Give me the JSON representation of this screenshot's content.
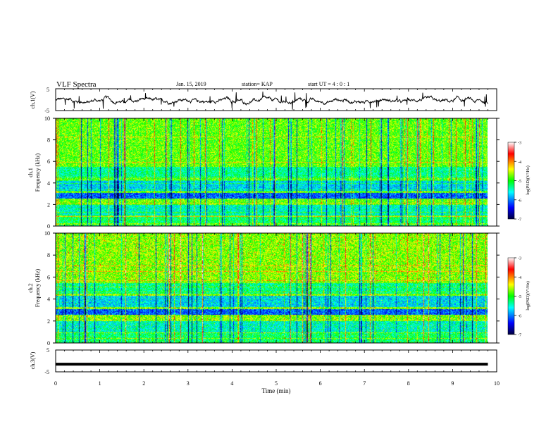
{
  "header": {
    "title": "VLF Spectra",
    "date": "Jan. 15, 2019",
    "station": "station= KAP",
    "start": "start UT =  4 : 0 : 1"
  },
  "chart_data": [
    {
      "type": "line",
      "panel": "ch1_waveform",
      "ylabel": "ch.1(V)",
      "ylim": [
        -5,
        5
      ],
      "yticks": [
        -5,
        5
      ],
      "xlim": [
        0,
        10
      ],
      "grid": false,
      "note": "noisy waveform fluctuating around about -0.5 V between ~-3 and +2 V",
      "color": "#000000"
    },
    {
      "type": "heatmap",
      "panel": "ch1_spectrogram",
      "ylabel": "ch.1\nFrequency (kHz)",
      "ylim": [
        0,
        10
      ],
      "yticks": [
        0,
        2,
        4,
        6,
        8,
        10
      ],
      "xlim": [
        0,
        10
      ],
      "data_end_min": 9.8,
      "colorbar": {
        "label": "log(PSD)(V²/Hz)",
        "range": [
          -7,
          -3
        ],
        "ticks": [
          -7,
          -6,
          -5,
          -4,
          -3
        ],
        "colors": [
          "#00003c",
          "#0000ff",
          "#00ffff",
          "#00ff00",
          "#ffff00",
          "#ff0000",
          "#ffffff"
        ]
      }
    },
    {
      "type": "heatmap",
      "panel": "ch2_spectrogram",
      "ylabel": "ch.2\nFrequency (kHz)",
      "ylim": [
        0,
        10
      ],
      "yticks": [
        0,
        2,
        4,
        6,
        8,
        10
      ],
      "xlim": [
        0,
        10
      ],
      "data_end_min": 9.8,
      "colorbar": {
        "label": "log(PSD)(V²/Hz)",
        "range": [
          -7,
          -3
        ],
        "ticks": [
          -7,
          -6,
          -5,
          -4,
          -3
        ],
        "colors": [
          "#00003c",
          "#0000ff",
          "#00ffff",
          "#00ff00",
          "#ffff00",
          "#ff0000",
          "#ffffff"
        ]
      }
    },
    {
      "type": "line",
      "panel": "ch3_waveform",
      "ylabel": "ch.3(V)",
      "ylim": [
        -5,
        5
      ],
      "yticks": [
        -5,
        5
      ],
      "xlim": [
        0,
        10
      ],
      "xlabel": "Time  (min)",
      "xticks": [
        0,
        1,
        2,
        3,
        4,
        5,
        6,
        7,
        8,
        9,
        10
      ],
      "note": "flat thick line at about -1.5 V from 0 to 9.8 min",
      "level": -1.5,
      "color": "#000000"
    }
  ]
}
